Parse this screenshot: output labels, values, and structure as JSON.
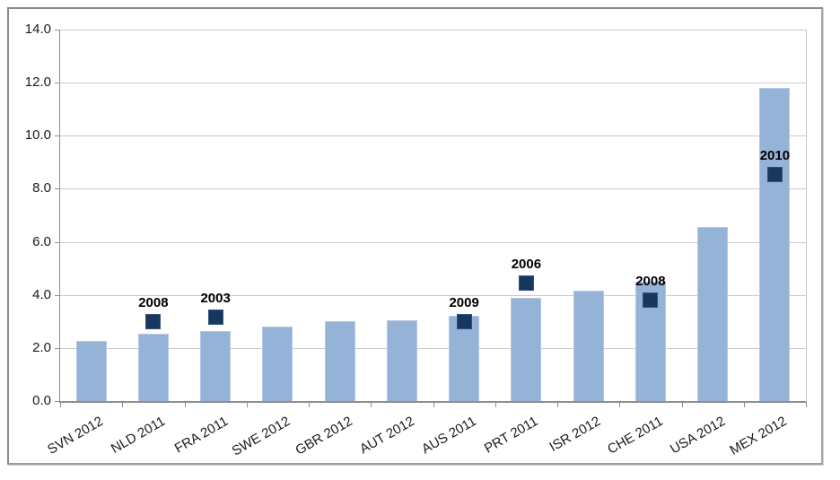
{
  "chart_data": {
    "type": "bar",
    "title": "",
    "xlabel": "",
    "ylabel": "",
    "categories": [
      "SVN 2012",
      "NLD 2011",
      "FRA 2011",
      "SWE 2012",
      "GBR 2012",
      "AUT 2012",
      "AUS 2011",
      "PRT 2011",
      "ISR 2012",
      "CHE 2011",
      "USA 2012",
      "MEX 2012"
    ],
    "values": [
      2.25,
      2.55,
      2.65,
      2.8,
      3.0,
      3.05,
      3.2,
      3.9,
      4.15,
      4.5,
      6.55,
      11.8
    ],
    "markers": [
      {
        "category": "NLD 2011",
        "index": 1,
        "value": 3.0,
        "label": "2008"
      },
      {
        "category": "FRA 2011",
        "index": 2,
        "value": 3.15,
        "label": "2003"
      },
      {
        "category": "AUS 2011",
        "index": 6,
        "value": 3.0,
        "label": "2009"
      },
      {
        "category": "PRT 2011",
        "index": 7,
        "value": 4.45,
        "label": "2006"
      },
      {
        "category": "CHE 2011",
        "index": 9,
        "value": 3.8,
        "label": "2008"
      },
      {
        "category": "MEX 2012",
        "index": 11,
        "value": 8.55,
        "label": "2010"
      }
    ],
    "ylim": [
      0,
      14
    ],
    "ytick_step": 2,
    "ytick_labels": [
      "0.0",
      "2.0",
      "4.0",
      "6.0",
      "8.0",
      "10.0",
      "12.0",
      "14.0"
    ],
    "grid": true,
    "legend": "none",
    "colors": {
      "bar_fill": "#95B3D7",
      "bar_border": "#B3C8E4",
      "marker_fill": "#17375E",
      "gridline": "#C9C9C9",
      "axis_line": "#8E8E8E",
      "tick_label": "#1A1A1A",
      "year_label": "#000000",
      "frame_border": "#8A8A8A",
      "background": "#FFFFFF"
    }
  }
}
